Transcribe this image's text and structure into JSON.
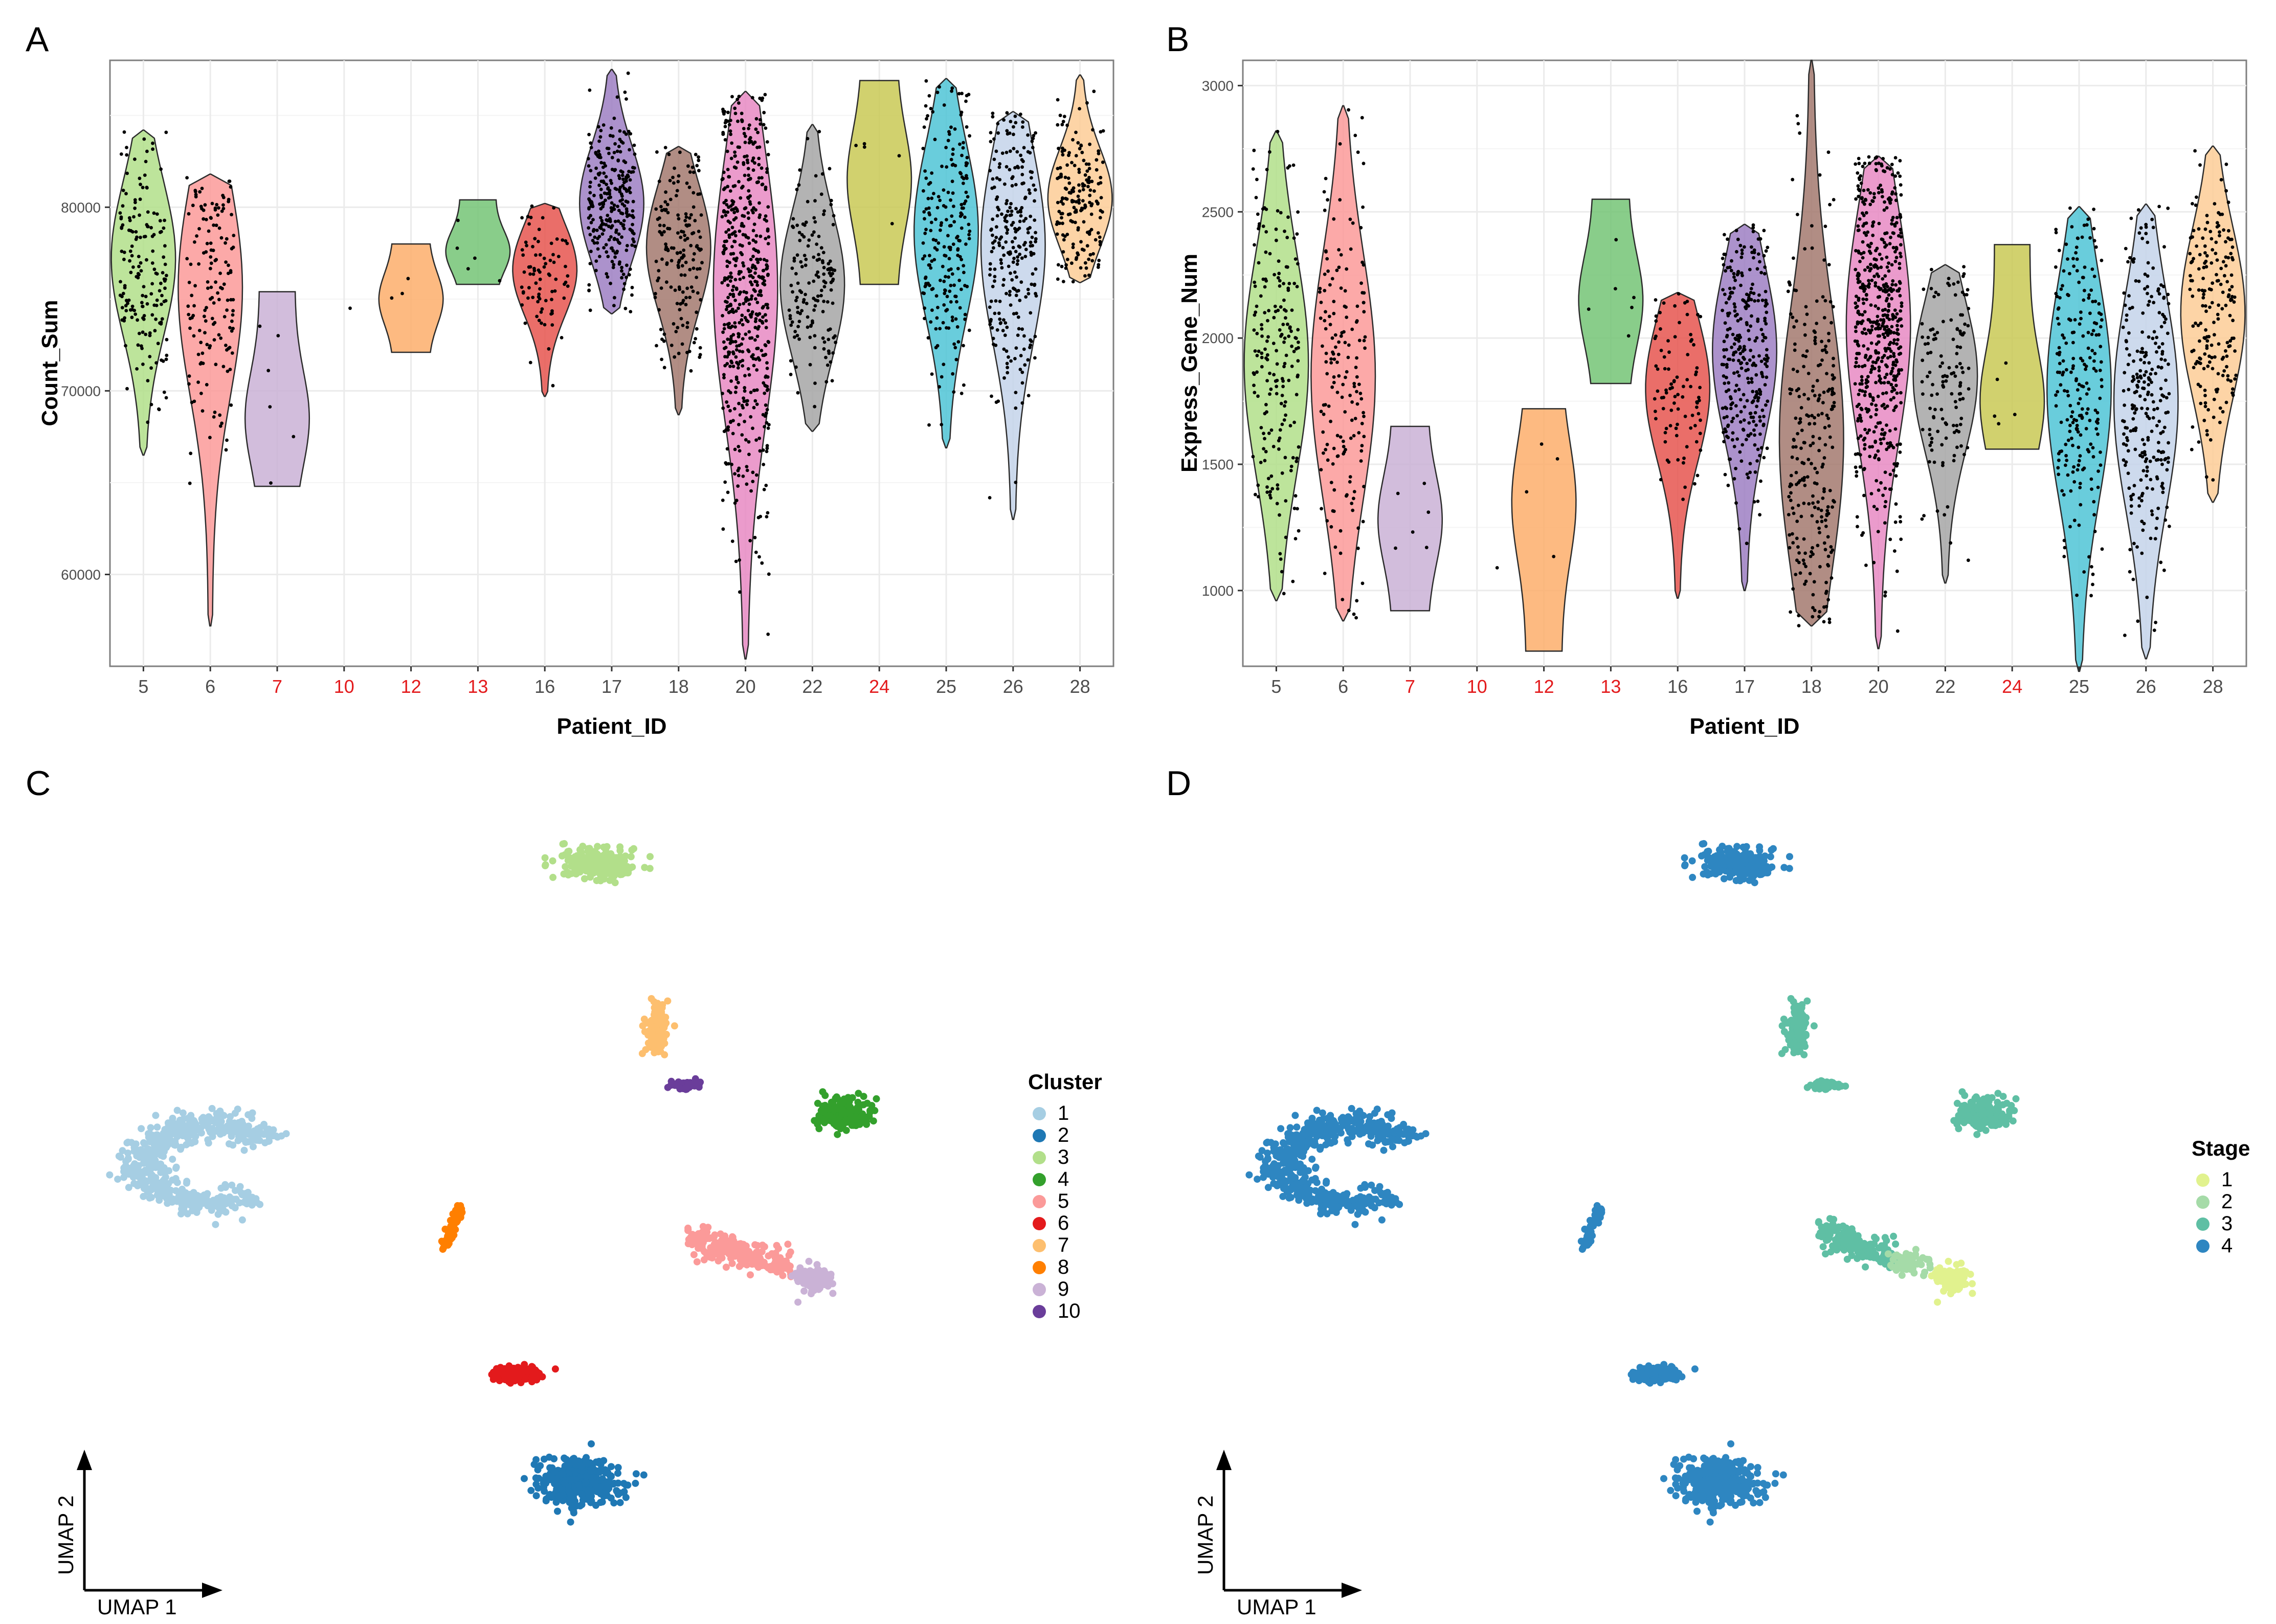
{
  "figure": {
    "highlight_color": "#e31a1c",
    "point_color": "#000000",
    "grid_color": "#ebebeb",
    "panel_border": "#7f7f7f"
  },
  "chart_data": [
    {
      "panel": "A",
      "type": "violin",
      "title": "",
      "xlabel": "Patient_ID",
      "ylabel": "Count_Sum",
      "ylim": [
        55000,
        88000
      ],
      "yticks": [
        60000,
        70000,
        80000
      ],
      "ytick_labels": [
        "60000",
        "70000",
        "80000"
      ],
      "categories": [
        "5",
        "6",
        "7",
        "10",
        "12",
        "13",
        "16",
        "17",
        "18",
        "20",
        "22",
        "24",
        "25",
        "26",
        "28"
      ],
      "highlighted_categories": [
        "7",
        "10",
        "12",
        "13",
        "24"
      ],
      "series": [
        {
          "name": "5",
          "color": "#b2df8a",
          "min": 66500,
          "max": 84200,
          "median": 77200,
          "n": 170,
          "width": 0.8
        },
        {
          "name": "6",
          "color": "#fb9a99",
          "min": 57200,
          "max": 81800,
          "median": 75600,
          "n": 150,
          "width": 0.8
        },
        {
          "name": "7",
          "color": "#cab2d6",
          "min": 64800,
          "max": 75400,
          "median": 68500,
          "n": 6,
          "width": 0.8
        },
        {
          "name": "10",
          "color": "#cccccc",
          "min": 74500,
          "max": 74500,
          "median": 74500,
          "n": 1,
          "width": 0.0
        },
        {
          "name": "12",
          "color": "#fdae6b",
          "min": 72100,
          "max": 78000,
          "median": 75000,
          "n": 3,
          "width": 0.8
        },
        {
          "name": "13",
          "color": "#74c476",
          "min": 75800,
          "max": 80400,
          "median": 77600,
          "n": 5,
          "width": 0.8
        },
        {
          "name": "16",
          "color": "#e6554f",
          "min": 69700,
          "max": 80200,
          "median": 76600,
          "n": 80,
          "width": 0.8
        },
        {
          "name": "17",
          "color": "#9e7fc3",
          "min": 74200,
          "max": 87500,
          "median": 80200,
          "n": 280,
          "width": 0.8
        },
        {
          "name": "18",
          "color": "#a3796f",
          "min": 68700,
          "max": 83300,
          "median": 77800,
          "n": 170,
          "width": 0.8
        },
        {
          "name": "20",
          "color": "#e78ac3",
          "min": 55400,
          "max": 86300,
          "median": 75600,
          "n": 560,
          "width": 0.8
        },
        {
          "name": "22",
          "color": "#a6a6a6",
          "min": 67800,
          "max": 84500,
          "median": 75800,
          "n": 150,
          "width": 0.8
        },
        {
          "name": "24",
          "color": "#c9c955",
          "min": 75800,
          "max": 86900,
          "median": 81500,
          "n": 5,
          "width": 0.8
        },
        {
          "name": "25",
          "color": "#4fc4d6",
          "min": 66900,
          "max": 87000,
          "median": 78700,
          "n": 220,
          "width": 0.8
        },
        {
          "name": "26",
          "color": "#c4d4ea",
          "min": 63000,
          "max": 85200,
          "median": 77900,
          "n": 260,
          "width": 0.8
        },
        {
          "name": "28",
          "color": "#fdcd96",
          "min": 75900,
          "max": 87200,
          "median": 80500,
          "n": 180,
          "width": 0.8
        }
      ]
    },
    {
      "panel": "B",
      "type": "violin",
      "title": "",
      "xlabel": "Patient_ID",
      "ylabel": "Express_Gene_Num",
      "ylim": [
        700,
        3100
      ],
      "yticks": [
        1000,
        1500,
        2000,
        2500,
        3000
      ],
      "ytick_labels": [
        "1000",
        "1500",
        "2000",
        "2500",
        "3000"
      ],
      "categories": [
        "5",
        "6",
        "7",
        "10",
        "12",
        "13",
        "16",
        "17",
        "18",
        "20",
        "22",
        "24",
        "25",
        "26",
        "28"
      ],
      "highlighted_categories": [
        "7",
        "10",
        "12",
        "13",
        "24"
      ],
      "series": [
        {
          "name": "5",
          "color": "#b2df8a",
          "min": 960,
          "max": 2820,
          "median": 1900,
          "n": 200,
          "width": 0.8
        },
        {
          "name": "6",
          "color": "#fb9a99",
          "min": 880,
          "max": 2920,
          "median": 1850,
          "n": 170,
          "width": 0.8
        },
        {
          "name": "7",
          "color": "#cab2d6",
          "min": 920,
          "max": 1650,
          "median": 1280,
          "n": 6,
          "width": 0.8
        },
        {
          "name": "10",
          "color": "#cccccc",
          "min": 1090,
          "max": 1090,
          "median": 1090,
          "n": 1,
          "width": 0.0
        },
        {
          "name": "12",
          "color": "#fdae6b",
          "min": 760,
          "max": 1720,
          "median": 1350,
          "n": 4,
          "width": 0.8
        },
        {
          "name": "13",
          "color": "#74c476",
          "min": 1820,
          "max": 2550,
          "median": 2150,
          "n": 6,
          "width": 0.8
        },
        {
          "name": "16",
          "color": "#e6554f",
          "min": 970,
          "max": 2180,
          "median": 1800,
          "n": 90,
          "width": 0.8
        },
        {
          "name": "17",
          "color": "#9e7fc3",
          "min": 1000,
          "max": 2450,
          "median": 1950,
          "n": 300,
          "width": 0.8
        },
        {
          "name": "18",
          "color": "#a3796f",
          "min": 860,
          "max": 3100,
          "median": 1600,
          "n": 250,
          "width": 0.8
        },
        {
          "name": "20",
          "color": "#e78ac3",
          "min": 770,
          "max": 2720,
          "median": 2050,
          "n": 560,
          "width": 0.8
        },
        {
          "name": "22",
          "color": "#a6a6a6",
          "min": 1030,
          "max": 2290,
          "median": 1850,
          "n": 130,
          "width": 0.8
        },
        {
          "name": "24",
          "color": "#c9c955",
          "min": 1560,
          "max": 2370,
          "median": 1750,
          "n": 5,
          "width": 0.8
        },
        {
          "name": "25",
          "color": "#4fc4d6",
          "min": 680,
          "max": 2520,
          "median": 1800,
          "n": 220,
          "width": 0.8
        },
        {
          "name": "26",
          "color": "#c4d4ea",
          "min": 730,
          "max": 2530,
          "median": 1750,
          "n": 260,
          "width": 0.8
        },
        {
          "name": "28",
          "color": "#fdcd96",
          "min": 1350,
          "max": 2760,
          "median": 2100,
          "n": 190,
          "width": 0.8
        }
      ]
    },
    {
      "panel": "C",
      "type": "scatter",
      "title": "",
      "xlabel": "UMAP 1",
      "ylabel": "UMAP 2",
      "legend_title": "Cluster",
      "legend_position": "right",
      "xlim": [
        -10,
        10
      ],
      "ylim": [
        -10,
        10
      ],
      "groups": [
        {
          "label": "1",
          "color": "#a6cee3"
        },
        {
          "label": "2",
          "color": "#1f78b4"
        },
        {
          "label": "3",
          "color": "#b2df8a"
        },
        {
          "label": "4",
          "color": "#33a02c"
        },
        {
          "label": "5",
          "color": "#fb9a99"
        },
        {
          "label": "6",
          "color": "#e31a1c"
        },
        {
          "label": "7",
          "color": "#fdbf6f"
        },
        {
          "label": "8",
          "color": "#ff7f00"
        },
        {
          "label": "9",
          "color": "#cab2d6"
        },
        {
          "label": "10",
          "color": "#6a3d9a"
        }
      ],
      "clusters": [
        {
          "group": "1",
          "cx": -7.8,
          "cy": 1.0,
          "sx": 1.6,
          "sy": 1.0,
          "n": 520,
          "shape": "hook"
        },
        {
          "group": "2",
          "cx": 0.6,
          "cy": -7.0,
          "sx": 0.8,
          "sy": 0.55,
          "n": 360,
          "shape": "blob"
        },
        {
          "group": "3",
          "cx": 1.1,
          "cy": 8.6,
          "sx": 0.8,
          "sy": 0.4,
          "n": 230,
          "shape": "blob"
        },
        {
          "group": "4",
          "cx": 6.7,
          "cy": 2.3,
          "sx": 0.5,
          "sy": 0.35,
          "n": 220,
          "shape": "blob"
        },
        {
          "group": "5",
          "cx": 4.3,
          "cy": -1.2,
          "sx": 1.2,
          "sy": 0.35,
          "n": 200,
          "shape": "streak"
        },
        {
          "group": "6",
          "cx": -0.8,
          "cy": -4.3,
          "sx": 0.45,
          "sy": 0.15,
          "n": 220,
          "shape": "blob"
        },
        {
          "group": "7",
          "cx": 2.4,
          "cy": 4.4,
          "sx": 0.25,
          "sy": 0.55,
          "n": 120,
          "shape": "blob"
        },
        {
          "group": "8",
          "cx": -2.3,
          "cy": -0.6,
          "sx": 0.18,
          "sy": 0.5,
          "n": 60,
          "shape": "arc"
        },
        {
          "group": "9",
          "cx": 6.0,
          "cy": -1.9,
          "sx": 0.35,
          "sy": 0.3,
          "n": 110,
          "shape": "blob"
        },
        {
          "group": "10",
          "cx": 3.1,
          "cy": 3.0,
          "sx": 0.35,
          "sy": 0.12,
          "n": 50,
          "shape": "blob"
        }
      ]
    },
    {
      "panel": "D",
      "type": "scatter",
      "title": "",
      "xlabel": "UMAP 1",
      "ylabel": "UMAP 2",
      "legend_title": "Stage",
      "legend_position": "right",
      "xlim": [
        -10,
        10
      ],
      "ylim": [
        -10,
        10
      ],
      "groups": [
        {
          "label": "1",
          "color": "#e1f28e"
        },
        {
          "label": "2",
          "color": "#a5dba8"
        },
        {
          "label": "3",
          "color": "#5fbfa4"
        },
        {
          "label": "4",
          "color": "#2e86c1"
        }
      ],
      "clusters": [
        {
          "group": "4",
          "cx": -7.8,
          "cy": 1.0,
          "sx": 1.6,
          "sy": 1.0,
          "n": 520,
          "shape": "hook"
        },
        {
          "group": "4",
          "cx": 0.6,
          "cy": -7.0,
          "sx": 0.8,
          "sy": 0.55,
          "n": 360,
          "shape": "blob"
        },
        {
          "group": "4",
          "cx": 1.1,
          "cy": 8.6,
          "sx": 0.8,
          "sy": 0.4,
          "n": 230,
          "shape": "blob"
        },
        {
          "group": "3",
          "cx": 6.7,
          "cy": 2.3,
          "sx": 0.5,
          "sy": 0.35,
          "n": 220,
          "shape": "blob"
        },
        {
          "group": "3",
          "cx": 3.8,
          "cy": -1.0,
          "sx": 0.9,
          "sy": 0.35,
          "n": 160,
          "shape": "streak"
        },
        {
          "group": "2",
          "cx": 5.0,
          "cy": -1.5,
          "sx": 0.45,
          "sy": 0.25,
          "n": 50,
          "shape": "blob"
        },
        {
          "group": "4",
          "cx": -0.8,
          "cy": -4.3,
          "sx": 0.45,
          "sy": 0.15,
          "n": 220,
          "shape": "blob"
        },
        {
          "group": "3",
          "cx": 2.4,
          "cy": 4.4,
          "sx": 0.25,
          "sy": 0.55,
          "n": 120,
          "shape": "blob"
        },
        {
          "group": "4",
          "cx": -2.3,
          "cy": -0.6,
          "sx": 0.18,
          "sy": 0.5,
          "n": 60,
          "shape": "arc"
        },
        {
          "group": "1",
          "cx": 6.0,
          "cy": -1.9,
          "sx": 0.35,
          "sy": 0.3,
          "n": 110,
          "shape": "blob"
        },
        {
          "group": "3",
          "cx": 3.1,
          "cy": 3.0,
          "sx": 0.35,
          "sy": 0.12,
          "n": 50,
          "shape": "blob"
        }
      ]
    }
  ]
}
